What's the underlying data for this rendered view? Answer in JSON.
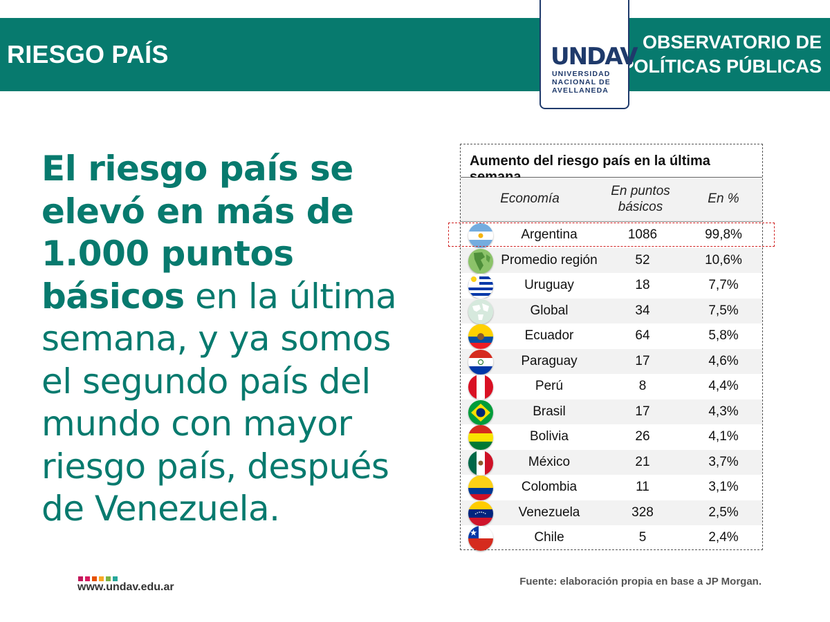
{
  "header": {
    "title": "RIESGO PAÍS",
    "org_line1": "OBSERVATORIO DE",
    "org_line2": "POLÍTICAS PÚBLICAS",
    "logo_mark": "UNDAV",
    "logo_line1": "UNIVERSIDAD",
    "logo_line2": "NACIONAL DE",
    "logo_line3": "AVELLANEDA"
  },
  "statement": {
    "bold1": "El riesgo país se elevó en más de 1.000 puntos básicos",
    "rest": " en la última semana, y ya somos el segundo país del mundo con mayor riesgo país, después de Venezuela."
  },
  "table": {
    "title": "Aumento del riesgo país en la última semana",
    "col_economy": "Economía",
    "col_points_1": "En puntos",
    "col_points_2": "básicos",
    "col_percent": "En %",
    "rows": [
      {
        "name": "Argentina",
        "points": "1086",
        "percent": "99,8%",
        "flag": "argentina-flag-icon"
      },
      {
        "name": "Promedio región",
        "points": "52",
        "percent": "10,6%",
        "flag": "globe-americas-icon"
      },
      {
        "name": "Uruguay",
        "points": "18",
        "percent": "7,7%",
        "flag": "uruguay-flag-icon"
      },
      {
        "name": "Global",
        "points": "34",
        "percent": "7,5%",
        "flag": "globe-icon"
      },
      {
        "name": "Ecuador",
        "points": "64",
        "percent": "5,8%",
        "flag": "ecuador-flag-icon"
      },
      {
        "name": "Paraguay",
        "points": "17",
        "percent": "4,6%",
        "flag": "paraguay-flag-icon"
      },
      {
        "name": "Perú",
        "points": "8",
        "percent": "4,4%",
        "flag": "peru-flag-icon"
      },
      {
        "name": "Brasil",
        "points": "17",
        "percent": "4,3%",
        "flag": "brazil-flag-icon"
      },
      {
        "name": "Bolivia",
        "points": "26",
        "percent": "4,1%",
        "flag": "bolivia-flag-icon"
      },
      {
        "name": "México",
        "points": "21",
        "percent": "3,7%",
        "flag": "mexico-flag-icon"
      },
      {
        "name": "Colombia",
        "points": "11",
        "percent": "3,1%",
        "flag": "colombia-flag-icon"
      },
      {
        "name": "Venezuela",
        "points": "328",
        "percent": "2,5%",
        "flag": "venezuela-flag-icon"
      },
      {
        "name": "Chile",
        "points": "5",
        "percent": "2,4%",
        "flag": "chile-flag-icon"
      }
    ]
  },
  "footer": {
    "url": "www.undav.edu.ar",
    "source": "Fuente: elaboración propia en base a JP Morgan.",
    "dot_colors": [
      "#c2185b",
      "#d81b60",
      "#e65100",
      "#f9a825",
      "#7cb342",
      "#26a69a"
    ]
  },
  "colors": {
    "brand_teal": "#077a6e",
    "logo_navy": "#1f3a6b",
    "highlight_red": "#d02020"
  }
}
